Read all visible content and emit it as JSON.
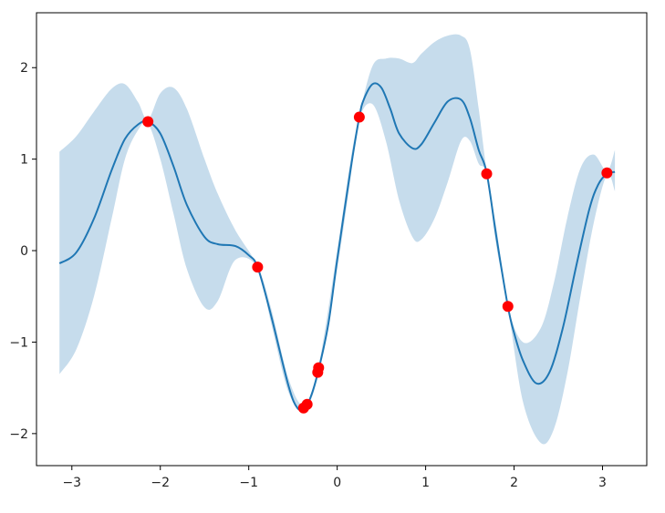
{
  "chart_data": {
    "type": "line",
    "title": "",
    "xlabel": "",
    "ylabel": "",
    "xlim": [
      -3.4,
      3.5
    ],
    "ylim": [
      -2.35,
      2.6
    ],
    "grid": false,
    "x_ticks": [
      -3,
      -2,
      -1,
      0,
      1,
      2,
      3
    ],
    "x_tick_labels": [
      "−3",
      "−2",
      "−1",
      "0",
      "1",
      "2",
      "3"
    ],
    "y_ticks": [
      -2,
      -1,
      0,
      1,
      2
    ],
    "y_tick_labels": [
      "−2",
      "−1",
      "0",
      "1",
      "2"
    ],
    "colors": {
      "line": "#1f77b4",
      "band": "#c6dcec",
      "points": "#ff0000"
    },
    "band": [
      {
        "x": -3.14,
        "lower": -1.35,
        "upper": 1.08
      },
      {
        "x": -2.95,
        "lower": -1.08,
        "upper": 1.25
      },
      {
        "x": -2.75,
        "lower": -0.5,
        "upper": 1.52
      },
      {
        "x": -2.55,
        "lower": 0.35,
        "upper": 1.77
      },
      {
        "x": -2.4,
        "lower": 1.0,
        "upper": 1.82
      },
      {
        "x": -2.25,
        "lower": 1.32,
        "upper": 1.62
      },
      {
        "x": -2.14,
        "lower": 1.39,
        "upper": 1.43
      },
      {
        "x": -2.0,
        "lower": 1.0,
        "upper": 1.72
      },
      {
        "x": -1.85,
        "lower": 0.4,
        "upper": 1.78
      },
      {
        "x": -1.7,
        "lower": -0.2,
        "upper": 1.55
      },
      {
        "x": -1.5,
        "lower": -0.62,
        "upper": 1.0
      },
      {
        "x": -1.35,
        "lower": -0.55,
        "upper": 0.62
      },
      {
        "x": -1.15,
        "lower": -0.1,
        "upper": 0.22
      },
      {
        "x": -0.9,
        "lower": -0.19,
        "upper": -0.17
      },
      {
        "x": -0.75,
        "lower": -0.78,
        "upper": -0.62
      },
      {
        "x": -0.55,
        "lower": -1.55,
        "upper": -1.4
      },
      {
        "x": -0.37,
        "lower": -1.73,
        "upper": -1.69
      },
      {
        "x": -0.21,
        "lower": -1.34,
        "upper": -1.26
      },
      {
        "x": 0.0,
        "lower": -0.2,
        "upper": 0.0
      },
      {
        "x": 0.15,
        "lower": 0.78,
        "upper": 0.98
      },
      {
        "x": 0.25,
        "lower": 1.44,
        "upper": 1.48
      },
      {
        "x": 0.4,
        "lower": 1.6,
        "upper": 2.02
      },
      {
        "x": 0.55,
        "lower": 1.2,
        "upper": 2.1
      },
      {
        "x": 0.7,
        "lower": 0.55,
        "upper": 2.1
      },
      {
        "x": 0.85,
        "lower": 0.15,
        "upper": 2.05
      },
      {
        "x": 0.95,
        "lower": 0.12,
        "upper": 2.15
      },
      {
        "x": 1.1,
        "lower": 0.35,
        "upper": 2.28
      },
      {
        "x": 1.25,
        "lower": 0.75,
        "upper": 2.35
      },
      {
        "x": 1.4,
        "lower": 1.2,
        "upper": 2.35
      },
      {
        "x": 1.5,
        "lower": 1.2,
        "upper": 2.2
      },
      {
        "x": 1.6,
        "lower": 0.95,
        "upper": 1.55
      },
      {
        "x": 1.69,
        "lower": 0.83,
        "upper": 0.87
      },
      {
        "x": 1.8,
        "lower": 0.05,
        "upper": 0.25
      },
      {
        "x": 1.93,
        "lower": -0.62,
        "upper": -0.6
      },
      {
        "x": 2.1,
        "lower": -1.65,
        "upper": -1.0
      },
      {
        "x": 2.3,
        "lower": -2.1,
        "upper": -0.85
      },
      {
        "x": 2.45,
        "lower": -1.95,
        "upper": -0.35
      },
      {
        "x": 2.6,
        "lower": -1.35,
        "upper": 0.35
      },
      {
        "x": 2.75,
        "lower": -0.5,
        "upper": 0.9
      },
      {
        "x": 2.9,
        "lower": 0.3,
        "upper": 1.05
      },
      {
        "x": 3.05,
        "lower": 0.83,
        "upper": 0.87
      },
      {
        "x": 3.14,
        "lower": 0.65,
        "upper": 1.1
      }
    ],
    "series": [
      {
        "x": [
          -3.14,
          -2.95,
          -2.75,
          -2.55,
          -2.4,
          -2.25,
          -2.14,
          -2.0,
          -1.85,
          -1.7,
          -1.5,
          -1.35,
          -1.15,
          -1.0,
          -0.9,
          -0.75,
          -0.55,
          -0.45,
          -0.37,
          -0.3,
          -0.21,
          -0.1,
          0.0,
          0.15,
          0.25,
          0.3,
          0.4,
          0.5,
          0.6,
          0.7,
          0.85,
          0.95,
          1.1,
          1.25,
          1.4,
          1.5,
          1.6,
          1.69,
          1.8,
          1.93,
          2.0,
          2.1,
          2.25,
          2.4,
          2.55,
          2.7,
          2.85,
          2.95,
          3.05,
          3.14
        ],
        "y": [
          -0.14,
          -0.02,
          0.35,
          0.88,
          1.22,
          1.38,
          1.41,
          1.28,
          0.92,
          0.5,
          0.15,
          0.07,
          0.05,
          -0.05,
          -0.18,
          -0.7,
          -1.48,
          -1.72,
          -1.71,
          -1.6,
          -1.3,
          -0.8,
          -0.1,
          0.88,
          1.46,
          1.65,
          1.82,
          1.78,
          1.55,
          1.28,
          1.12,
          1.16,
          1.4,
          1.63,
          1.65,
          1.45,
          1.1,
          0.85,
          0.15,
          -0.61,
          -0.9,
          -1.2,
          -1.45,
          -1.33,
          -0.85,
          -0.18,
          0.45,
          0.72,
          0.84,
          0.86
        ]
      }
    ],
    "scatter": [
      {
        "x": -2.14,
        "y": 1.41
      },
      {
        "x": -0.9,
        "y": -0.18
      },
      {
        "x": -0.38,
        "y": -1.72
      },
      {
        "x": -0.34,
        "y": -1.68
      },
      {
        "x": -0.21,
        "y": -1.28
      },
      {
        "x": -0.22,
        "y": -1.33
      },
      {
        "x": 0.25,
        "y": 1.46
      },
      {
        "x": 1.69,
        "y": 0.84
      },
      {
        "x": 1.93,
        "y": -0.61
      },
      {
        "x": 3.05,
        "y": 0.85
      }
    ]
  }
}
